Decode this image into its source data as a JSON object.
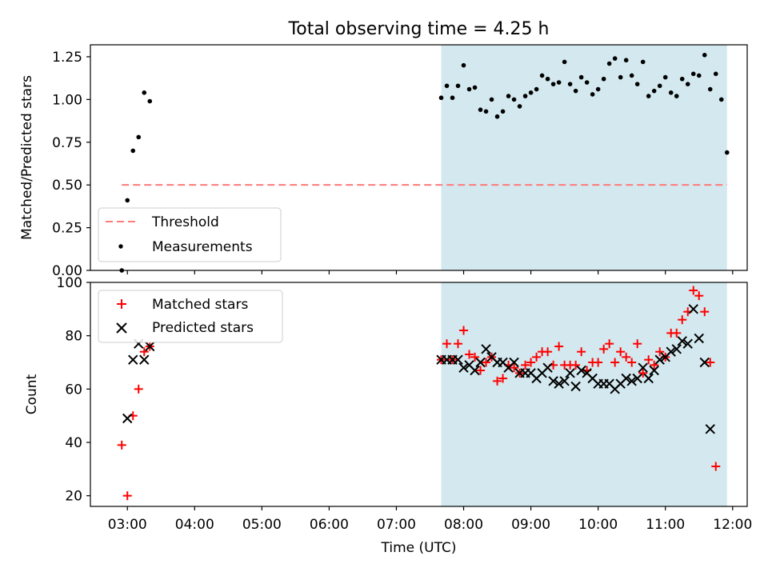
{
  "chart_data": [
    {
      "type": "scatter",
      "title": "Total observing time = 4.25 h",
      "ylabel": "Matched/Predicted stars",
      "ylim": [
        0,
        1.32
      ],
      "yticks": [
        "0.00",
        "0.25",
        "0.50",
        "0.75",
        "1.00",
        "1.25"
      ],
      "xlim": [
        "02:27",
        "12:13"
      ],
      "shaded_span": [
        "07:40",
        "11:55"
      ],
      "shade_color": "#d3e9ef",
      "threshold": {
        "label": "Threshold",
        "value": 0.5,
        "x_range": [
          "02:55",
          "11:55"
        ],
        "color": "#ff7a7a"
      },
      "series": [
        {
          "name": "Measurements",
          "color": "#000000",
          "marker": "dot",
          "points": [
            [
              "02:55",
              0.0
            ],
            [
              "03:00",
              0.41
            ],
            [
              "03:05",
              0.7
            ],
            [
              "03:10",
              0.78
            ],
            [
              "03:15",
              1.04
            ],
            [
              "03:20",
              0.99
            ],
            [
              "07:40",
              1.01
            ],
            [
              "07:45",
              1.08
            ],
            [
              "07:50",
              1.01
            ],
            [
              "07:55",
              1.08
            ],
            [
              "08:00",
              1.2
            ],
            [
              "08:05",
              1.06
            ],
            [
              "08:10",
              1.07
            ],
            [
              "08:15",
              0.94
            ],
            [
              "08:20",
              0.93
            ],
            [
              "08:25",
              1.0
            ],
            [
              "08:30",
              0.9
            ],
            [
              "08:35",
              0.93
            ],
            [
              "08:40",
              1.02
            ],
            [
              "08:45",
              1.0
            ],
            [
              "08:50",
              0.96
            ],
            [
              "08:55",
              1.02
            ],
            [
              "09:00",
              1.04
            ],
            [
              "09:05",
              1.06
            ],
            [
              "09:10",
              1.14
            ],
            [
              "09:15",
              1.12
            ],
            [
              "09:20",
              1.09
            ],
            [
              "09:25",
              1.1
            ],
            [
              "09:30",
              1.22
            ],
            [
              "09:35",
              1.09
            ],
            [
              "09:40",
              1.05
            ],
            [
              "09:45",
              1.13
            ],
            [
              "09:50",
              1.1
            ],
            [
              "09:55",
              1.03
            ],
            [
              "10:00",
              1.06
            ],
            [
              "10:05",
              1.12
            ],
            [
              "10:10",
              1.21
            ],
            [
              "10:15",
              1.24
            ],
            [
              "10:20",
              1.13
            ],
            [
              "10:25",
              1.23
            ],
            [
              "10:30",
              1.14
            ],
            [
              "10:35",
              1.09
            ],
            [
              "10:40",
              1.22
            ],
            [
              "10:45",
              1.02
            ],
            [
              "10:50",
              1.05
            ],
            [
              "10:55",
              1.08
            ],
            [
              "11:00",
              1.13
            ],
            [
              "11:05",
              1.04
            ],
            [
              "11:10",
              1.02
            ],
            [
              "11:15",
              1.12
            ],
            [
              "11:20",
              1.09
            ],
            [
              "11:25",
              1.15
            ],
            [
              "11:30",
              1.14
            ],
            [
              "11:35",
              1.26
            ],
            [
              "11:40",
              1.06
            ],
            [
              "11:45",
              1.15
            ],
            [
              "11:50",
              1.0
            ],
            [
              "11:55",
              0.69
            ]
          ]
        }
      ],
      "legend": "lower-left"
    },
    {
      "type": "scatter",
      "ylabel": "Count",
      "xlabel": "Time (UTC)",
      "ylim": [
        16,
        100
      ],
      "yticks": [
        "20",
        "40",
        "60",
        "80",
        "100"
      ],
      "xticks": [
        "03:00",
        "04:00",
        "05:00",
        "06:00",
        "07:00",
        "08:00",
        "09:00",
        "10:00",
        "11:00",
        "12:00"
      ],
      "xlim": [
        "02:27",
        "12:13"
      ],
      "shaded_span": [
        "07:40",
        "11:55"
      ],
      "shade_color": "#d3e9ef",
      "series": [
        {
          "name": "Matched stars",
          "color": "#ff0000",
          "marker": "plus",
          "points": [
            [
              "02:55",
              39
            ],
            [
              "03:00",
              20
            ],
            [
              "03:05",
              50
            ],
            [
              "03:10",
              60
            ],
            [
              "03:15",
              74
            ],
            [
              "03:20",
              76
            ],
            [
              "07:40",
              71
            ],
            [
              "07:45",
              77
            ],
            [
              "07:50",
              71
            ],
            [
              "07:55",
              77
            ],
            [
              "08:00",
              82
            ],
            [
              "08:05",
              73
            ],
            [
              "08:10",
              72
            ],
            [
              "08:15",
              67
            ],
            [
              "08:20",
              70
            ],
            [
              "08:25",
              72
            ],
            [
              "08:30",
              63
            ],
            [
              "08:35",
              64
            ],
            [
              "08:40",
              69
            ],
            [
              "08:45",
              68
            ],
            [
              "08:50",
              66
            ],
            [
              "08:55",
              69
            ],
            [
              "09:00",
              70
            ],
            [
              "09:05",
              72
            ],
            [
              "09:10",
              74
            ],
            [
              "09:15",
              74
            ],
            [
              "09:20",
              69
            ],
            [
              "09:25",
              76
            ],
            [
              "09:30",
              69
            ],
            [
              "09:35",
              69
            ],
            [
              "09:40",
              69
            ],
            [
              "09:45",
              74
            ],
            [
              "09:50",
              67
            ],
            [
              "09:55",
              70
            ],
            [
              "10:00",
              70
            ],
            [
              "10:05",
              75
            ],
            [
              "10:10",
              77
            ],
            [
              "10:15",
              70
            ],
            [
              "10:20",
              74
            ],
            [
              "10:25",
              72
            ],
            [
              "10:30",
              70
            ],
            [
              "10:35",
              77
            ],
            [
              "10:40",
              66
            ],
            [
              "10:45",
              71
            ],
            [
              "10:50",
              69
            ],
            [
              "10:55",
              74
            ],
            [
              "11:00",
              72
            ],
            [
              "11:05",
              81
            ],
            [
              "11:10",
              81
            ],
            [
              "11:15",
              86
            ],
            [
              "11:20",
              89
            ],
            [
              "11:25",
              97
            ],
            [
              "11:30",
              95
            ],
            [
              "11:35",
              89
            ],
            [
              "11:40",
              70
            ],
            [
              "11:45",
              31
            ]
          ]
        },
        {
          "name": "Predicted stars",
          "color": "#000000",
          "marker": "x",
          "points": [
            [
              "03:00",
              49
            ],
            [
              "03:05",
              71
            ],
            [
              "03:10",
              77
            ],
            [
              "03:15",
              71
            ],
            [
              "03:20",
              76
            ],
            [
              "07:40",
              71
            ],
            [
              "07:45",
              71
            ],
            [
              "07:50",
              71
            ],
            [
              "07:55",
              71
            ],
            [
              "08:00",
              68
            ],
            [
              "08:05",
              69
            ],
            [
              "08:10",
              67
            ],
            [
              "08:15",
              70
            ],
            [
              "08:20",
              75
            ],
            [
              "08:25",
              72
            ],
            [
              "08:30",
              70
            ],
            [
              "08:35",
              70
            ],
            [
              "08:40",
              68
            ],
            [
              "08:45",
              70
            ],
            [
              "08:50",
              66
            ],
            [
              "08:55",
              66
            ],
            [
              "09:00",
              66
            ],
            [
              "09:05",
              64
            ],
            [
              "09:10",
              66
            ],
            [
              "09:15",
              68
            ],
            [
              "09:20",
              63
            ],
            [
              "09:25",
              62
            ],
            [
              "09:30",
              63
            ],
            [
              "09:35",
              66
            ],
            [
              "09:40",
              61
            ],
            [
              "09:45",
              67
            ],
            [
              "09:50",
              66
            ],
            [
              "09:55",
              64
            ],
            [
              "10:00",
              62
            ],
            [
              "10:05",
              62
            ],
            [
              "10:10",
              62
            ],
            [
              "10:15",
              60
            ],
            [
              "10:20",
              62
            ],
            [
              "10:25",
              64
            ],
            [
              "10:30",
              63
            ],
            [
              "10:35",
              64
            ],
            [
              "10:40",
              68
            ],
            [
              "10:45",
              64
            ],
            [
              "10:50",
              67
            ],
            [
              "10:55",
              71
            ],
            [
              "11:00",
              72
            ],
            [
              "11:05",
              74
            ],
            [
              "11:10",
              75
            ],
            [
              "11:15",
              78
            ],
            [
              "11:20",
              77
            ],
            [
              "11:25",
              90
            ],
            [
              "11:30",
              79
            ],
            [
              "11:35",
              70
            ],
            [
              "11:40",
              45
            ]
          ]
        }
      ],
      "legend": "upper-left"
    }
  ]
}
